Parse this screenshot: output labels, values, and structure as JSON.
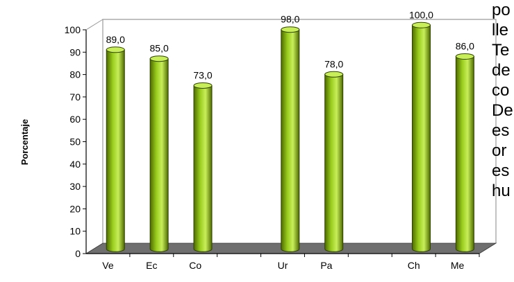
{
  "chart_data": {
    "type": "bar",
    "title": "",
    "xlabel": "",
    "ylabel": "Porcentaje",
    "ylim": [
      0,
      100
    ],
    "yticks": [
      0,
      10,
      20,
      30,
      40,
      50,
      60,
      70,
      80,
      90,
      100
    ],
    "categories": [
      "Ve",
      "Ec",
      "Co",
      "",
      "Ur",
      "Pa",
      "",
      "Ch",
      "Me"
    ],
    "values": [
      89.0,
      85.0,
      73.0,
      null,
      98.0,
      78.0,
      null,
      100.0,
      86.0
    ],
    "data_labels": [
      "89,0",
      "85,0",
      "73,0",
      "",
      "98,0",
      "78,0",
      "",
      "100,0",
      "86,0"
    ],
    "grid": false,
    "legend": "none",
    "style": "3d-cylinder"
  },
  "colors": {
    "bar_fill": "#9ACD1E",
    "bar_dark": "#4E6B00",
    "bar_light": "#C8EE5A",
    "floor": "#6f6f6f",
    "axis": "#000000",
    "wall_line": "#9a9a9a"
  },
  "side_text": [
    "po",
    "lle",
    "Te",
    "de",
    "co",
    "De",
    "es",
    "or",
    "es",
    "hu"
  ]
}
